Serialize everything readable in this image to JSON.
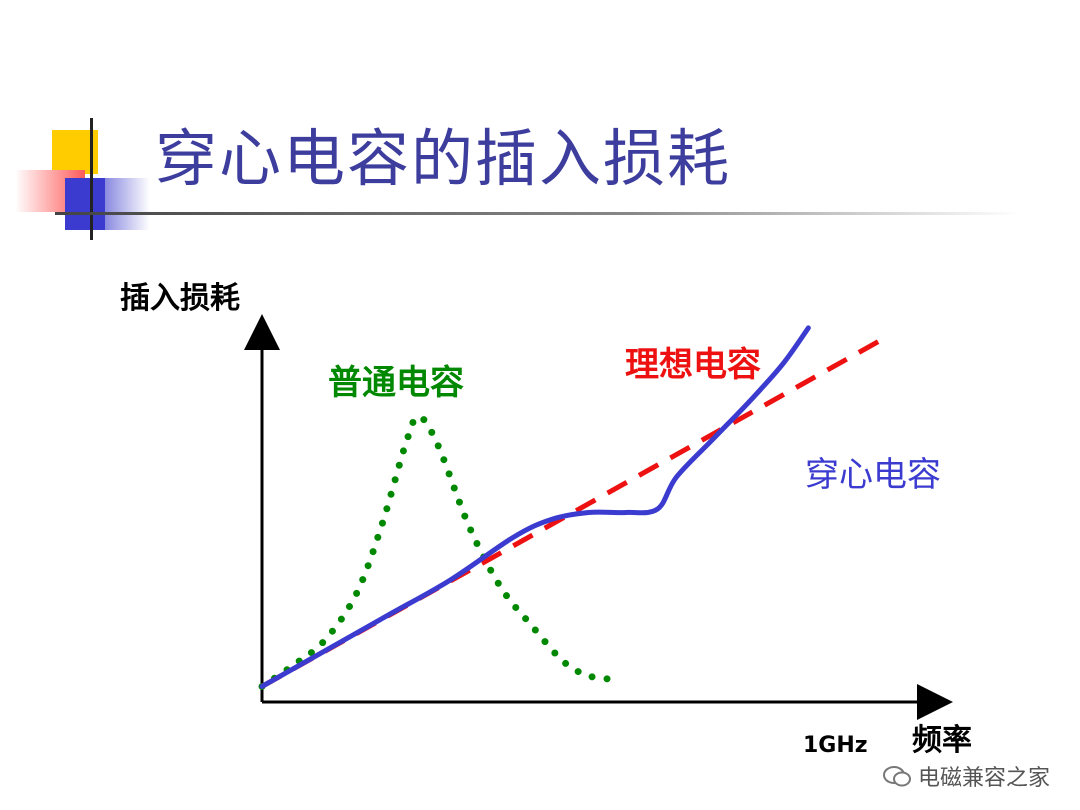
{
  "title": "穿心电容的插入损耗",
  "chart_data": {
    "type": "line",
    "ylabel": "插入损耗",
    "xlabel": "频率",
    "x_tick_label": "1GHz",
    "grid": false,
    "xlim": [
      0,
      1
    ],
    "ylim": [
      0,
      1
    ],
    "series": [
      {
        "name": "普通电容",
        "style": "dotted",
        "color": "#008800",
        "points": [
          [
            0.0,
            0.01
          ],
          [
            0.05,
            0.07
          ],
          [
            0.1,
            0.14
          ],
          [
            0.15,
            0.27
          ],
          [
            0.19,
            0.46
          ],
          [
            0.23,
            0.7
          ],
          [
            0.25,
            0.77
          ],
          [
            0.28,
            0.69
          ],
          [
            0.33,
            0.46
          ],
          [
            0.38,
            0.29
          ],
          [
            0.43,
            0.18
          ],
          [
            0.48,
            0.08
          ],
          [
            0.52,
            0.04
          ],
          [
            0.56,
            0.03
          ]
        ]
      },
      {
        "name": "理想电容",
        "style": "dashed",
        "color": "#ee1111",
        "points": [
          [
            0.0,
            0.01
          ],
          [
            1.0,
            1.0
          ]
        ]
      },
      {
        "name": "穿心电容",
        "style": "solid",
        "color": "#3b3bd0",
        "points": [
          [
            0.0,
            0.01
          ],
          [
            0.1,
            0.11
          ],
          [
            0.2,
            0.21
          ],
          [
            0.3,
            0.31
          ],
          [
            0.4,
            0.43
          ],
          [
            0.46,
            0.48
          ],
          [
            0.52,
            0.5
          ],
          [
            0.58,
            0.5
          ],
          [
            0.63,
            0.51
          ],
          [
            0.66,
            0.6
          ],
          [
            0.72,
            0.71
          ],
          [
            0.78,
            0.82
          ],
          [
            0.83,
            0.92
          ],
          [
            0.87,
            1.02
          ]
        ]
      }
    ]
  },
  "colors": {
    "title": "#3d3d9e",
    "axis": "#000000"
  },
  "watermark": "电磁兼容之家"
}
